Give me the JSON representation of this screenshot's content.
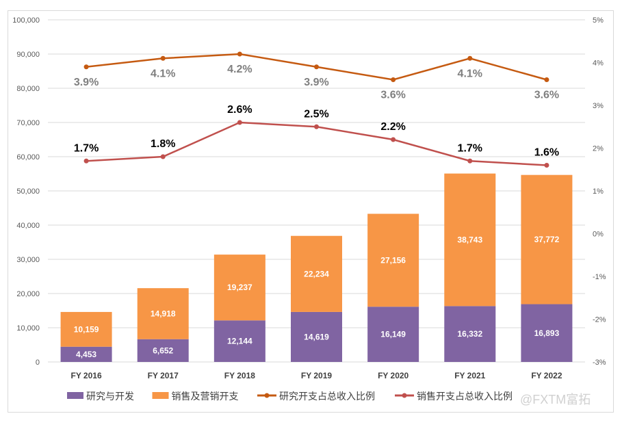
{
  "chart_data": {
    "type": "bar+line",
    "stacked": true,
    "categories": [
      "FY 2016",
      "FY 2017",
      "FY 2018",
      "FY 2019",
      "FY 2020",
      "FY 2021",
      "FY 2022"
    ],
    "series": [
      {
        "name": "研究与开发",
        "type": "bar",
        "axis": "left",
        "color": "#8064a2",
        "values": [
          4453,
          6652,
          12144,
          14619,
          16149,
          16332,
          16893
        ],
        "labels": [
          "4,453",
          "6,652",
          "12,144",
          "14,619",
          "16,149",
          "16,332",
          "16,893"
        ]
      },
      {
        "name": "销售及营销开支",
        "type": "bar",
        "axis": "left",
        "color": "#f79646",
        "values": [
          10159,
          14918,
          19237,
          22234,
          27156,
          38743,
          37772
        ],
        "labels": [
          "10,159",
          "14,918",
          "19,237",
          "22,234",
          "27,156",
          "38,743",
          "37,772"
        ]
      },
      {
        "name": "研究开支占总收入比例",
        "type": "line",
        "axis": "right",
        "color": "#c55a11",
        "label_color": "#7f7f7f",
        "values": [
          3.9,
          4.1,
          4.2,
          3.9,
          3.6,
          4.1,
          3.6
        ],
        "labels": [
          "3.9%",
          "4.1%",
          "4.2%",
          "3.9%",
          "3.6%",
          "4.1%",
          "3.6%"
        ]
      },
      {
        "name": "销售开支占总收入比例",
        "type": "line",
        "axis": "right",
        "color": "#c0504d",
        "label_color": "#000000",
        "values": [
          1.7,
          1.8,
          2.6,
          2.5,
          2.2,
          1.7,
          1.6
        ],
        "labels": [
          "1.7%",
          "1.8%",
          "2.6%",
          "2.5%",
          "2.2%",
          "1.7%",
          "1.6%"
        ]
      }
    ],
    "y_left": {
      "lim": [
        0,
        100000
      ],
      "ticks": [
        "0",
        "10,000",
        "20,000",
        "30,000",
        "40,000",
        "50,000",
        "60,000",
        "70,000",
        "80,000",
        "90,000",
        "100,000"
      ]
    },
    "y_right": {
      "lim": [
        -3,
        5
      ],
      "ticks": [
        "-3%",
        "-2%",
        "-1%",
        "0%",
        "1%",
        "2%",
        "3%",
        "4%",
        "5%"
      ]
    },
    "grid": true,
    "legend": "bottom"
  },
  "watermark": "@FXTM富拓"
}
